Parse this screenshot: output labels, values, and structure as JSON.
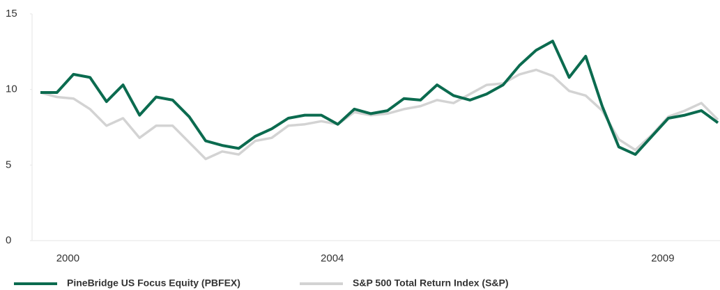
{
  "chart_data": {
    "type": "line",
    "categories": [
      null,
      null,
      "2000",
      null,
      null,
      null,
      null,
      null,
      null,
      null,
      null,
      null,
      null,
      null,
      null,
      null,
      null,
      null,
      "2004",
      null,
      null,
      null,
      null,
      null,
      null,
      null,
      null,
      null,
      null,
      null,
      null,
      null,
      null,
      null,
      null,
      null,
      null,
      null,
      "2009",
      null,
      null,
      null
    ],
    "series": [
      {
        "name": "S&P 500 Total Return  Index (S&P)",
        "color": "#d3d3d3",
        "values": [
          9.8,
          9.5,
          9.4,
          8.7,
          7.6,
          8.1,
          6.8,
          7.6,
          7.6,
          6.5,
          5.4,
          5.9,
          5.7,
          6.6,
          6.8,
          7.6,
          7.7,
          7.9,
          7.7,
          8.5,
          8.3,
          8.4,
          8.7,
          8.9,
          9.3,
          9.1,
          9.7,
          10.3,
          10.4,
          11.0,
          11.3,
          10.9,
          9.9,
          9.6,
          8.6,
          6.7,
          6.0,
          7.0,
          8.2,
          8.6,
          9.1,
          8.0
        ]
      },
      {
        "name": "PineBridge US Focus Equity (PBFEX)",
        "color": "#0b6b4f",
        "values": [
          9.8,
          9.8,
          11.0,
          10.8,
          9.2,
          10.3,
          8.3,
          9.5,
          9.3,
          8.2,
          6.6,
          6.3,
          6.1,
          6.9,
          7.4,
          8.1,
          8.3,
          8.3,
          7.7,
          8.7,
          8.4,
          8.6,
          9.4,
          9.3,
          10.3,
          9.6,
          9.3,
          9.7,
          10.3,
          11.6,
          12.6,
          13.2,
          10.8,
          12.2,
          8.9,
          6.2,
          5.7,
          6.9,
          8.1,
          8.3,
          8.6,
          7.8
        ]
      }
    ],
    "ylim": [
      0,
      15
    ],
    "yticks": [
      0,
      5,
      10,
      15
    ]
  }
}
